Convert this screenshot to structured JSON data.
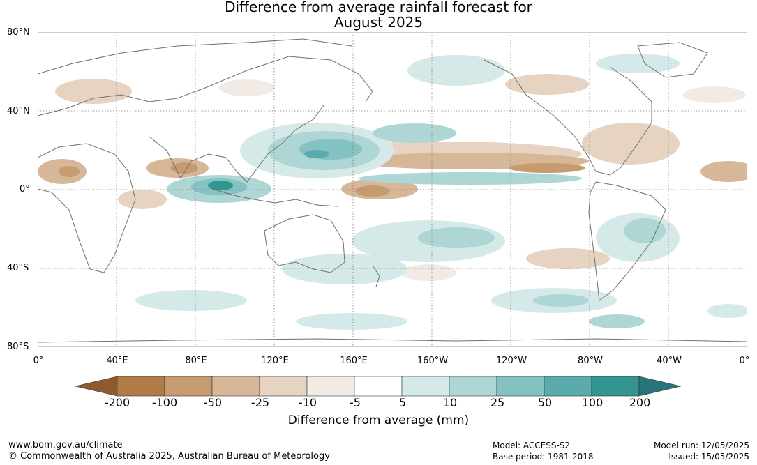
{
  "title_line1": "Difference from average rainfall forecast for",
  "title_line2": "August 2025",
  "lat_labels": [
    "80°N",
    "40°N",
    "0°",
    "40°S",
    "80°S"
  ],
  "lon_labels": [
    "0°",
    "40°E",
    "80°E",
    "120°E",
    "160°E",
    "160°W",
    "120°W",
    "80°W",
    "40°W",
    "0°"
  ],
  "colorbar": {
    "title": "Difference from average (mm)",
    "tick_labels": [
      "-200",
      "-100",
      "-50",
      "-25",
      "-10",
      "-5",
      "5",
      "10",
      "25",
      "50",
      "100",
      "200"
    ],
    "colors": [
      "#8c5a2e",
      "#b07b45",
      "#c69b70",
      "#d6b797",
      "#e6d3c2",
      "#f2ebe5",
      "#ffffff",
      "#d5e9e8",
      "#aed6d5",
      "#85c2c2",
      "#5aabab",
      "#32958f",
      "#27757a"
    ]
  },
  "footer": {
    "website": "www.bom.gov.au/climate",
    "copyright": "© Commonwealth of Australia 2025, Australian Bureau of Meteorology",
    "model": "Model: ACCESS-S2",
    "base_period": "Base period: 1981-2018",
    "model_run": "Model run: 12/05/2025",
    "issued": "Issued: 15/05/2025"
  }
}
